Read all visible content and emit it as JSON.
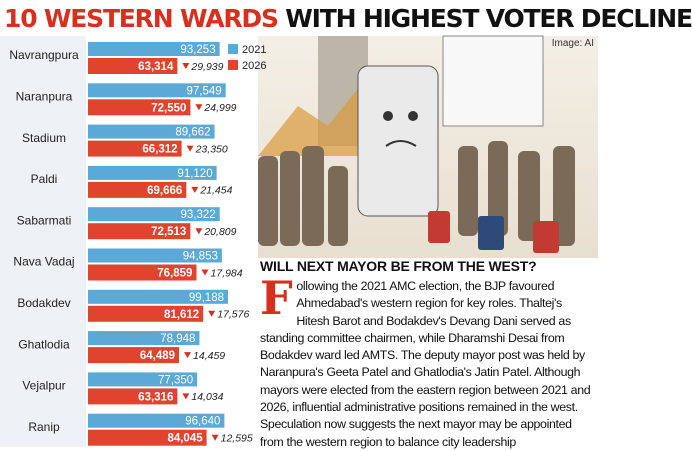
{
  "chart_data": {
    "type": "bar",
    "orientation": "horizontal",
    "title_highlight": "10 WESTERN WARDS",
    "title": "WITH HIGHEST VOTER DECLINE",
    "credit": "Image: AI",
    "categories": [
      "Navrangpura",
      "Naranpura",
      "Stadium",
      "Paldi",
      "Sabarmati",
      "Nava Vadaj",
      "Bodakdev",
      "Ghatlodia",
      "Vejalpur",
      "Ranip"
    ],
    "series": [
      {
        "name": "2021",
        "color": "#5aa9d6",
        "values": [
          93253,
          97549,
          89662,
          91120,
          93322,
          94853,
          99188,
          78948,
          77350,
          96640
        ],
        "value_labels": [
          "93,253",
          "97,549",
          "89,662",
          "91,120",
          "93,322",
          "94,853",
          "99,188",
          "78,948",
          "77,350",
          "96,640"
        ]
      },
      {
        "name": "2026",
        "color": "#e0442e",
        "values": [
          63314,
          72550,
          66312,
          69666,
          72513,
          76859,
          81612,
          64489,
          63316,
          84045
        ],
        "value_labels": [
          "63,314",
          "72,550",
          "66,312",
          "69,666",
          "72,513",
          "76,859",
          "81,612",
          "64,489",
          "63,316",
          "84,045"
        ]
      }
    ],
    "declines": {
      "color": "#d8301f",
      "values": [
        29939,
        24999,
        23350,
        21454,
        20809,
        17984,
        17576,
        14459,
        14034,
        12595
      ],
      "value_labels": [
        "29,939",
        "24,999",
        "23,350",
        "21,454",
        "20,809",
        "17,984",
        "17,576",
        "14,459",
        "14,034",
        "12,595"
      ]
    }
  },
  "article": {
    "heading": "WILL NEXT MAYOR BE FROM THE WEST?",
    "drop_cap": "F",
    "body": "ollowing the 2021 AMC election, the BJP favoured Ahmedabad's western region for key roles. Thaltej's Hitesh Barot and Bodakdev's Devang Dani served as standing committee chairmen, while Dharamshi Desai from Bodakdev ward led AMTS. The deputy mayor post was held by Naranpura's Geeta Patel and Ghatlodia's Jatin Patel. Although mayors were elected from the eastern region between 2021 and 2026, influential administrative positions remained in the west. Speculation now suggests the next mayor may be appointed from the western region to balance city leadership"
  }
}
